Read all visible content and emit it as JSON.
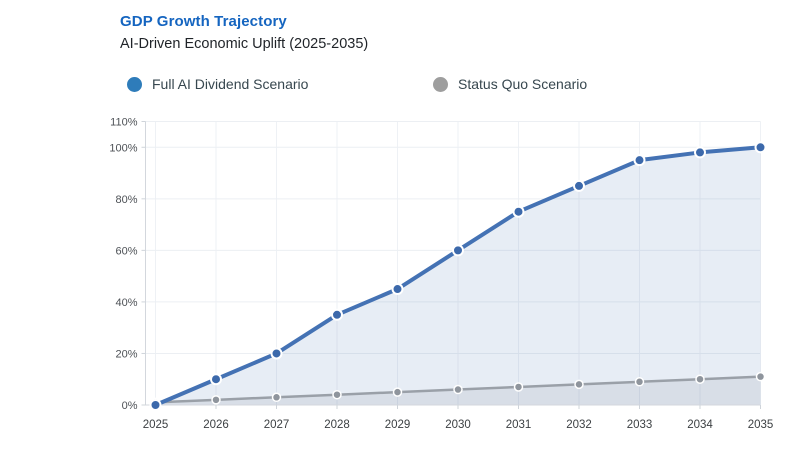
{
  "header": {
    "title": "GDP Growth Trajectory",
    "subtitle": "AI-Driven Economic Uplift (2025-2035)"
  },
  "legend": {
    "items": [
      {
        "label": "Full AI Dividend Scenario",
        "color": "#2e7cba"
      },
      {
        "label": "Status Quo Scenario",
        "color": "#9e9e9e"
      }
    ]
  },
  "chart_data": {
    "type": "area",
    "title": "GDP Growth Trajectory",
    "subtitle": "AI-Driven Economic Uplift (2025-2035)",
    "x_categories": [
      "2025",
      "2026",
      "2027",
      "2028",
      "2029",
      "2030",
      "2031",
      "2032",
      "2033",
      "2034",
      "2035"
    ],
    "series": [
      {
        "name": "Full AI Dividend Scenario",
        "values": [
          0,
          10,
          20,
          35,
          45,
          60,
          75,
          85,
          95,
          98,
          100
        ],
        "line_color": "#4472b4",
        "marker_color": "#3c69ab",
        "fill_color": "rgba(68,114,180,0.13)",
        "line_width": 4,
        "marker_radius": 5
      },
      {
        "name": "Status Quo Scenario",
        "values": [
          1,
          2,
          3,
          4,
          5,
          6,
          7,
          8,
          9,
          10,
          11
        ],
        "line_color": "#9aa0a8",
        "marker_color": "#8f959d",
        "fill_color": "rgba(110,118,130,0.12)",
        "line_width": 2.5,
        "marker_radius": 4
      }
    ],
    "ylim": [
      0,
      110
    ],
    "yticks": [
      {
        "value": 0,
        "label": "0%"
      },
      {
        "value": 20,
        "label": "20%"
      },
      {
        "value": 40,
        "label": "40%"
      },
      {
        "value": 60,
        "label": "60%"
      },
      {
        "value": 80,
        "label": "80%"
      },
      {
        "value": 100,
        "label": "100%"
      },
      {
        "value": 110,
        "label": "110%"
      }
    ],
    "grid": true,
    "legend_position": "top",
    "colors": {
      "grid_v": "#eef1f5",
      "grid_h": "#eceff3",
      "axis": "#d3d7dd",
      "tick": "#cfd4da",
      "y_label": "#4d5156",
      "x_label": "#3c4043",
      "marker_ring": "#ffffff"
    }
  }
}
